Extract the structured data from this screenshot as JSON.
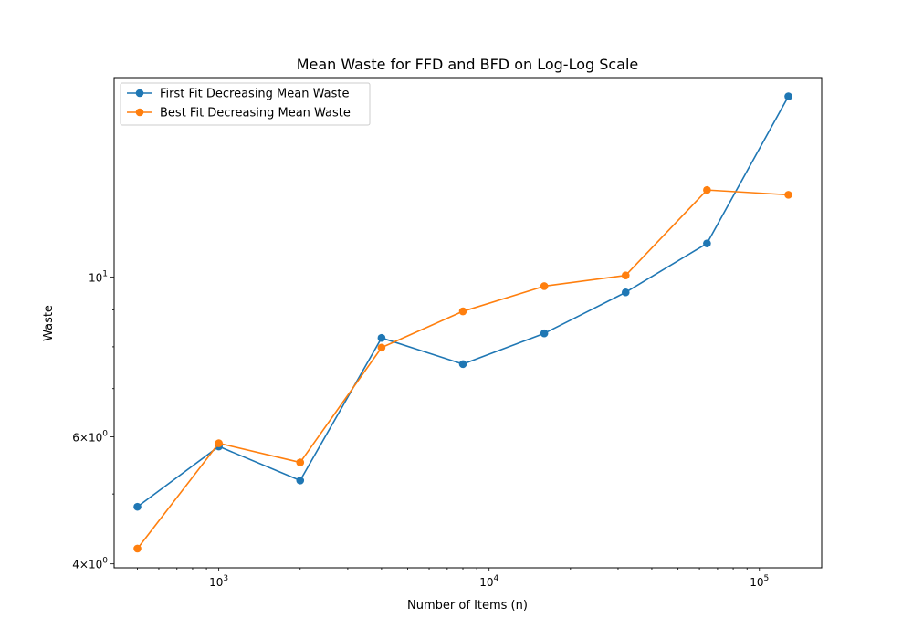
{
  "chart_data": {
    "type": "line",
    "title": "Mean Waste for FFD and BFD on Log-Log Scale",
    "xlabel": "Number of Items (n)",
    "ylabel": "Waste",
    "xscale": "log",
    "yscale": "log",
    "xlim": [
      410,
      170000
    ],
    "ylim": [
      3.95,
      18.9
    ],
    "x": [
      500,
      1000,
      2000,
      4000,
      8000,
      16000,
      32000,
      64000,
      128000
    ],
    "series": [
      {
        "name": "First Fit Decreasing Mean Waste",
        "color": "#1f77b4",
        "values": [
          4.8,
          5.82,
          5.22,
          8.23,
          7.57,
          8.35,
          9.52,
          11.13,
          17.8
        ]
      },
      {
        "name": "Best Fit Decreasing Mean Waste",
        "color": "#ff7f0e",
        "values": [
          4.2,
          5.88,
          5.53,
          7.98,
          8.96,
          9.71,
          10.05,
          13.2,
          13.0
        ]
      }
    ],
    "x_major_ticks": [
      {
        "value": 1000,
        "base": "10",
        "exp": "3"
      },
      {
        "value": 10000,
        "base": "10",
        "exp": "4"
      },
      {
        "value": 100000,
        "base": "10",
        "exp": "5"
      }
    ],
    "y_major_ticks": [
      {
        "value": 4,
        "base": "4×10",
        "exp": "0"
      },
      {
        "value": 6,
        "base": "6×10",
        "exp": "0"
      },
      {
        "value": 10,
        "base": "10",
        "exp": "1"
      }
    ],
    "y_minor_ticks": [
      5,
      7,
      8,
      9
    ],
    "grid": false,
    "legend_position": "top-left"
  }
}
